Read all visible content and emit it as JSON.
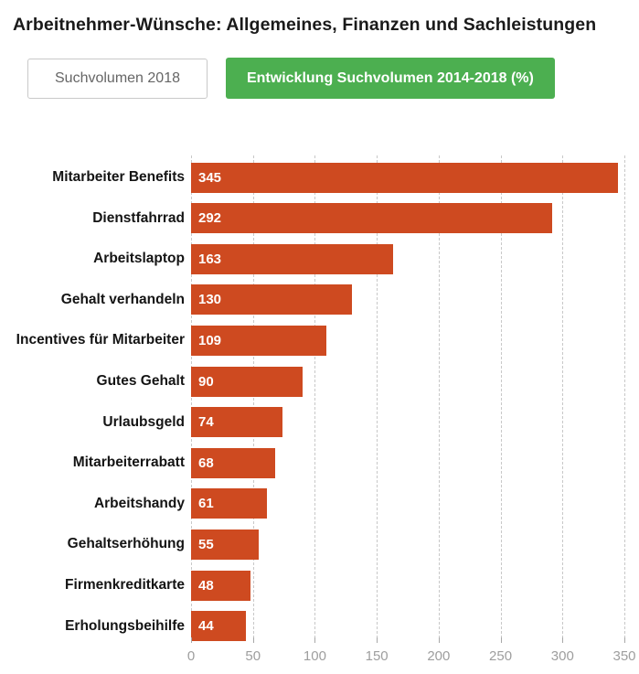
{
  "header": {
    "title": "Arbeitnehmer-Wünsche: Allgemeines, Finanzen und Sachleistungen"
  },
  "toolbar": {
    "inactive_button_label": "Suchvolumen 2018",
    "active_button_label": "Entwicklung Suchvolumen 2014-2018 (%)"
  },
  "colors": {
    "bar": "#ce4a20",
    "active_button_bg": "#4caf50",
    "active_button_text": "#ffffff",
    "inactive_button_text": "#666666",
    "axis_text": "#9e9e9e",
    "gridline": "#c8c8c8",
    "category_text": "#141414",
    "value_text": "#ffffff"
  },
  "chart_data": {
    "type": "bar",
    "orientation": "horizontal",
    "title": "Arbeitnehmer-Wünsche: Allgemeines, Finanzen und Sachleistungen",
    "series_name": "Entwicklung Suchvolumen 2014-2018 (%)",
    "categories": [
      "Mitarbeiter Benefits",
      "Dienstfahrrad",
      "Arbeitslaptop",
      "Gehalt verhandeln",
      "Incentives für Mitarbeiter",
      "Gutes Gehalt",
      "Urlaubsgeld",
      "Mitarbeiterrabatt",
      "Arbeitshandy",
      "Gehaltserhöhung",
      "Firmenkreditkarte",
      "Erholungsbeihilfe"
    ],
    "values": [
      345,
      292,
      163,
      130,
      109,
      90,
      74,
      68,
      61,
      55,
      48,
      44
    ],
    "xlabel": "",
    "ylabel": "",
    "xlim": [
      0,
      350
    ],
    "xticks": [
      0,
      50,
      100,
      150,
      200,
      250,
      300,
      350
    ],
    "grid": "dashed-vertical",
    "value_labels": "inside-start",
    "legend": "none"
  }
}
